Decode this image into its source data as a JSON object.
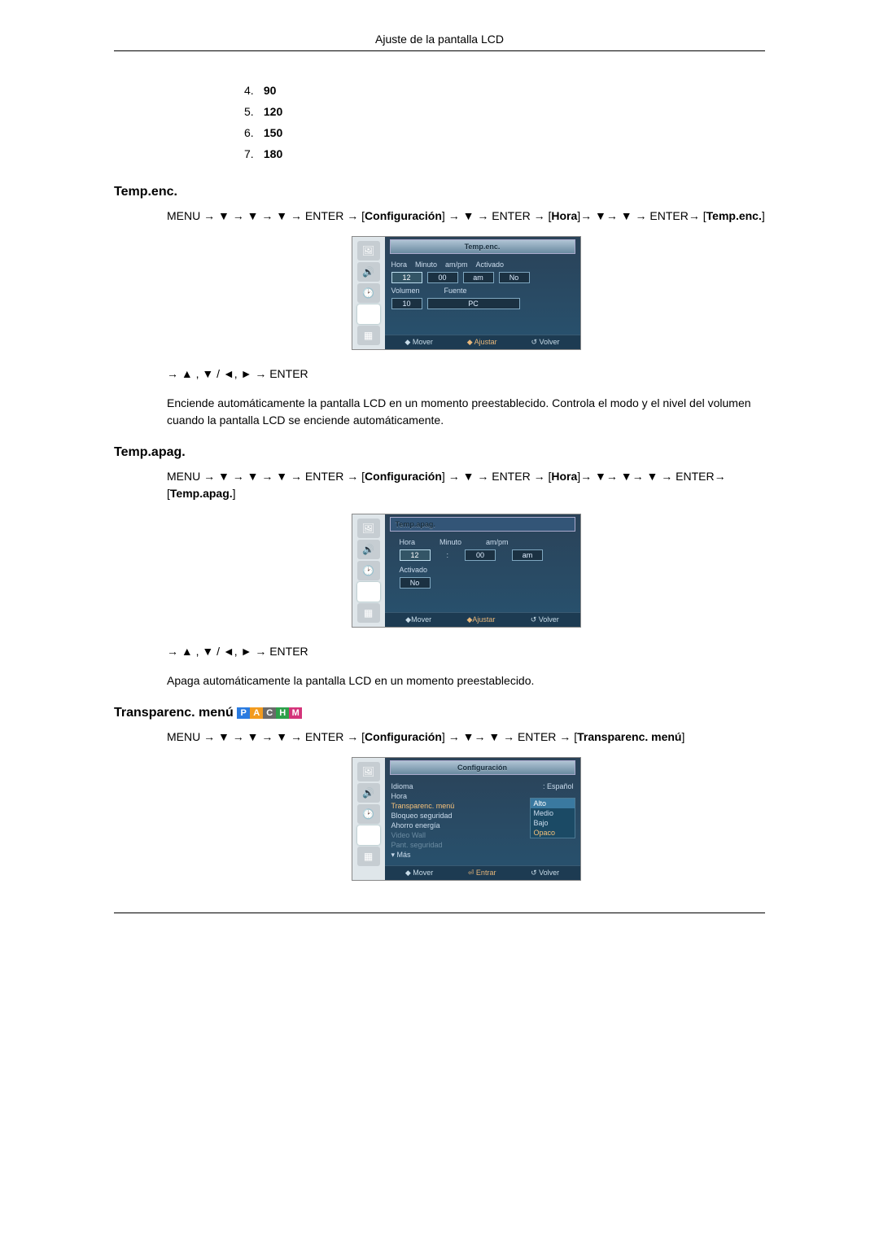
{
  "header": {
    "title": "Ajuste de la pantalla LCD"
  },
  "numberedList": {
    "start": 4,
    "items": [
      "90",
      "120",
      "150",
      "180"
    ]
  },
  "sections": {
    "tempEnc": {
      "heading": "Temp.enc.",
      "nav": "MENU → ▼ → ▼ → ▼ → ENTER → [Configuración] → ▼ → ENTER → [Hora]→ ▼→ ▼ → ENTER→ [Temp.enc.]",
      "navAfter": "→ ▲ , ▼ / ◄, ► → ENTER",
      "desc": "Enciende automáticamente la pantalla LCD en un momento preestablecido. Controla el modo y el nivel del volumen cuando la pantalla LCD se enciende automáticamente.",
      "osd": {
        "title": "Temp.enc.",
        "headers": [
          "Hora",
          "Minuto",
          "am/pm",
          "Activado"
        ],
        "values": {
          "hora": "12",
          "minuto": "00",
          "ampm": "am",
          "activado": "No"
        },
        "row2Labels": {
          "volumen": "Volumen",
          "fuente": "Fuente"
        },
        "row2Values": {
          "volumen": "10",
          "fuente": "PC"
        },
        "foot": {
          "mover": "◆ Mover",
          "ajustar": "◆ Ajustar",
          "volver": "↺ Volver"
        }
      }
    },
    "tempApag": {
      "heading": "Temp.apag.",
      "nav": "MENU → ▼ → ▼ → ▼ → ENTER → [Configuración] → ▼ → ENTER → [Hora]→ ▼→ ▼→ ▼ → ENTER→ [Temp.apag.]",
      "navAfter": "→ ▲ , ▼ / ◄, ► → ENTER",
      "desc": "Apaga automáticamente la pantalla LCD en un momento preestablecido.",
      "osd": {
        "title": "Temp.apag.",
        "headers": [
          "Hora",
          "Minuto",
          "am/pm"
        ],
        "values": {
          "hora": "12",
          "minuto": "00",
          "ampm": "am"
        },
        "activadoLabel": "Activado",
        "activadoValue": "No",
        "foot": {
          "mover": "◆Mover",
          "ajustar": "◆Ajustar",
          "volver": "↺ Volver"
        }
      }
    },
    "transparenc": {
      "heading": "Transparenc. menú",
      "badges": [
        "P",
        "A",
        "C",
        "H",
        "M"
      ],
      "nav": "MENU → ▼ → ▼ → ▼ → ENTER → [Configuración] → ▼→ ▼ → ENTER → [Transparenc. menú]",
      "osd": {
        "title": "Configuración",
        "items": [
          {
            "label": "Idioma",
            "value": "Español",
            "sel": false
          },
          {
            "label": "Hora",
            "value": "",
            "sel": false
          },
          {
            "label": "Transparenc. menú",
            "value": "",
            "sel": true
          },
          {
            "label": "Bloqueo seguridad",
            "value": "",
            "sel": false
          },
          {
            "label": "Ahorro energía",
            "value": "",
            "sel": false
          },
          {
            "label": "Video Wall",
            "value": "",
            "dim": true
          },
          {
            "label": "Pant. seguridad",
            "value": "",
            "dim": true
          },
          {
            "label": "▾ Más",
            "value": "",
            "sel": false
          }
        ],
        "popup": [
          "Alto",
          "Medio",
          "Bajo",
          "Opaco"
        ],
        "popupSel": 0,
        "foot": {
          "mover": "◆ Mover",
          "entrar": "⏎ Entrar",
          "volver": "↺ Volver"
        }
      }
    }
  },
  "colors": {
    "osd_bg_top": "#2a4258",
    "osd_bg_bottom": "#28526f",
    "osd_side": "#dfe6ea",
    "text": "#000000"
  }
}
